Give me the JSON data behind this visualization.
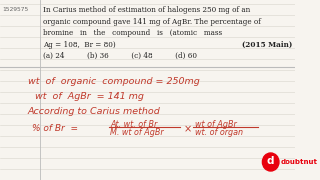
{
  "bg_color": "#f7f4ef",
  "question_id_text": "1529575",
  "question_lines": [
    "In Carius method of estimation of halogens 250 mg of an",
    "organic compound gave 141 mg of AgBr. The percentage of",
    "bromine   in   the   compound   is   (atomic   mass",
    "Ag = 108,  Br = 80)"
  ],
  "year_text": "(2015 Main)",
  "options_text": "(a) 24          (b) 36          (c) 48          (d) 60",
  "hw_color": "#c0392b",
  "hw_line1": "wt  of  organic  compound = 250mg",
  "hw_line2": "wt  of  AgBr  = 141 mg",
  "hw_line3": "According to Carius method",
  "hw_prefix": "% of Br  =",
  "frac1_num": "At. wt. of Br",
  "frac1_den": "M. wt of AgBr",
  "multiply": "×",
  "frac2_num": "wt of AgBr",
  "frac2_den": "wt. of organ",
  "line_color": "#d8d4cc",
  "separator_color": "#bbbbbb",
  "text_color": "#222222",
  "logo_circle_color": "#e8000d",
  "logo_text": "doubtnut"
}
